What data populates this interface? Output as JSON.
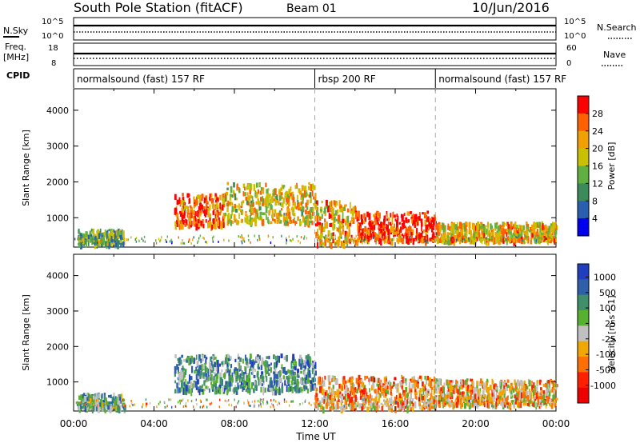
{
  "header": {
    "station": "South Pole Station (fitACF)",
    "beam": "Beam 01",
    "date": "10/Jun/2016"
  },
  "top_panels": {
    "nsky_label": "N.Sky",
    "nsky_ticks": [
      "10^5",
      "10^0"
    ],
    "nsearch_label": "N.Search",
    "nsearch_ticks": [
      "10^5",
      "10^0"
    ],
    "freq_label": "Freq.",
    "freq_unit": "[MHz]",
    "freq_ticks": [
      "18",
      "8"
    ],
    "nave_label": "Nave",
    "nave_ticks": [
      "60",
      "0"
    ],
    "cpid_label": "CPID"
  },
  "cpid_segments": [
    {
      "label": "normalsound (fast) 157 RF",
      "start_hour": 0
    },
    {
      "label": "rbsp 200 RF",
      "start_hour": 12
    },
    {
      "label": "normalsound (fast) 157 RF",
      "start_hour": 18
    }
  ],
  "x_axis": {
    "label": "Time UT",
    "ticks": [
      "00:00",
      "04:00",
      "08:00",
      "12:00",
      "16:00",
      "20:00",
      "00:00"
    ]
  },
  "chart_data": [
    {
      "type": "heatmap",
      "title": "",
      "xlabel": "Time UT",
      "ylabel": "Slant Range [km]",
      "x_range_hours": [
        0,
        24
      ],
      "ylim": [
        180,
        4600
      ],
      "yticks": [
        "1000",
        "2000",
        "3000",
        "4000"
      ],
      "colorbar_label": "Power [dB]",
      "colorbar_ticks": [
        "4",
        "8",
        "12",
        "16",
        "20",
        "24",
        "28"
      ],
      "colorbar_range": [
        0,
        32
      ],
      "colors": [
        "#0000ee",
        "#2a5fb0",
        "#3a8a5a",
        "#5fb040",
        "#c8c000",
        "#f0a000",
        "#ff6000",
        "#ff0000"
      ],
      "scatter_regions": [
        {
          "t": [
            0.2,
            2.5
          ],
          "r": [
            300,
            700
          ],
          "level": 0.4
        },
        {
          "t": [
            5.0,
            7.5
          ],
          "r": [
            800,
            1700
          ],
          "level": 0.8
        },
        {
          "t": [
            7.5,
            12.0
          ],
          "r": [
            900,
            2000
          ],
          "level": 0.6
        },
        {
          "t": [
            12.0,
            14.0
          ],
          "r": [
            300,
            1500
          ],
          "level": 0.7
        },
        {
          "t": [
            14.0,
            18.0
          ],
          "r": [
            400,
            1200
          ],
          "level": 0.9
        },
        {
          "t": [
            18.0,
            24.0
          ],
          "r": [
            400,
            900
          ],
          "level": 0.65
        }
      ]
    },
    {
      "type": "heatmap",
      "title": "",
      "xlabel": "Time UT",
      "ylabel": "Slant Range [km]",
      "x_range_hours": [
        0,
        24
      ],
      "ylim": [
        180,
        4600
      ],
      "yticks": [
        "1000",
        "2000",
        "3000",
        "4000"
      ],
      "colorbar_label": "Velocity [m s^-1]",
      "colorbar_ticks": [
        "1000",
        "500",
        "100",
        "25",
        "-25",
        "-100",
        "-500",
        "-1000"
      ],
      "colors": [
        "#1f3fbf",
        "#2e5fa8",
        "#3f8f6a",
        "#58b030",
        "#c0c0c0",
        "#f0a800",
        "#ff7000",
        "#ff2000",
        "#ee0000"
      ],
      "scatter_regions": [
        {
          "t": [
            0.2,
            2.5
          ],
          "r": [
            300,
            700
          ],
          "level": 0.35
        },
        {
          "t": [
            5.0,
            12.0
          ],
          "r": [
            800,
            1800
          ],
          "level": 0.3
        },
        {
          "t": [
            12.0,
            18.0
          ],
          "r": [
            300,
            1200
          ],
          "level": 0.65
        },
        {
          "t": [
            18.0,
            24.0
          ],
          "r": [
            400,
            1100
          ],
          "level": 0.6
        }
      ]
    }
  ]
}
